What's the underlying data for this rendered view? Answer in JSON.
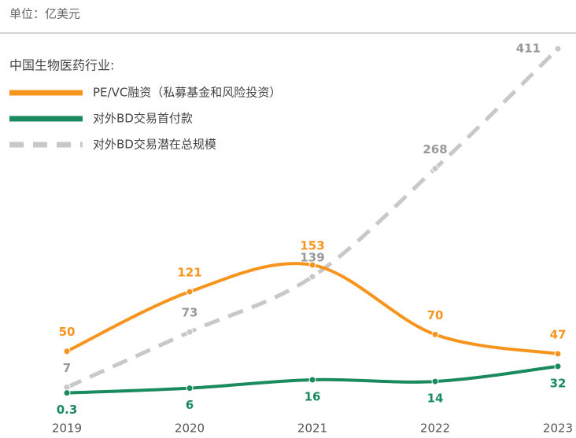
{
  "chart_data": {
    "type": "line",
    "unit_label": "单位：亿美元",
    "legend_title": "中国生物医药行业:",
    "categories": [
      "2019",
      "2020",
      "2021",
      "2022",
      "2023"
    ],
    "series": [
      {
        "name": "PE/VC融资（私募基金和风险投资）",
        "color": "#f7941d",
        "dash": false,
        "values": [
          50,
          121,
          153,
          70,
          47
        ]
      },
      {
        "name": "对外BD交易首付款",
        "color": "#1a8a5f",
        "dash": false,
        "values": [
          0.3,
          6,
          16,
          14,
          32
        ]
      },
      {
        "name": "对外BD交易潜在总规模",
        "color": "#c8c8c8",
        "dash": true,
        "values": [
          7,
          73,
          139,
          268,
          411
        ]
      }
    ],
    "ylim": [
      0,
      420
    ]
  }
}
